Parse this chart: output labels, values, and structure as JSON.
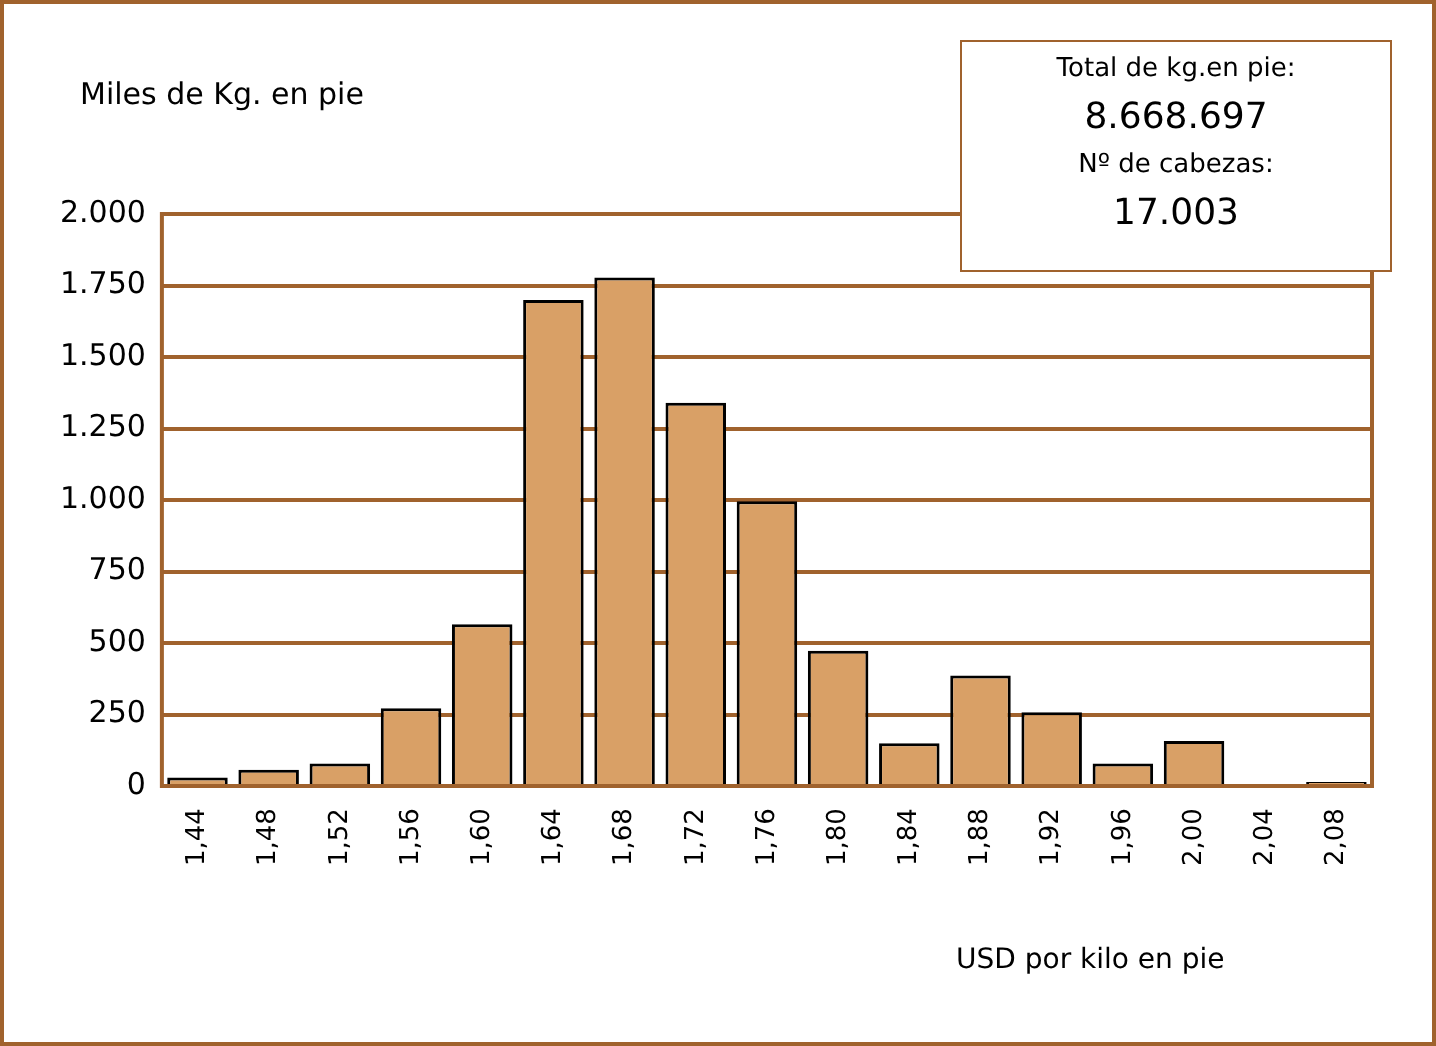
{
  "chart_data": {
    "type": "bar",
    "ylabel": "Miles de Kg. en pie",
    "xlabel": "USD por kilo en pie",
    "categories": [
      "1,44",
      "1,48",
      "1,52",
      "1,56",
      "1,60",
      "1,64",
      "1,68",
      "1,72",
      "1,76",
      "1,80",
      "1,84",
      "1,88",
      "1,92",
      "1,96",
      "2,00",
      "2,04",
      "2,08"
    ],
    "values": [
      30,
      57,
      79,
      272,
      566,
      1699,
      1778,
      1340,
      996,
      473,
      150,
      387,
      258,
      79,
      158,
      5,
      14
    ],
    "color": "#d9a066",
    "ylim": [
      0,
      2000
    ],
    "yticks": [
      {
        "value": 0,
        "label": "0"
      },
      {
        "value": 250,
        "label": "250"
      },
      {
        "value": 500,
        "label": "500"
      },
      {
        "value": 750,
        "label": "750"
      },
      {
        "value": 1000,
        "label": "1.000"
      },
      {
        "value": 1250,
        "label": "1.250"
      },
      {
        "value": 1500,
        "label": "1.500"
      },
      {
        "value": 1750,
        "label": "1.750"
      },
      {
        "value": 2000,
        "label": "2.000"
      }
    ],
    "grid": "y",
    "legend": false,
    "annotations": [
      "Total de kg.en pie:",
      "8.668.697",
      "Nº de cabezas:",
      "17.003"
    ]
  }
}
